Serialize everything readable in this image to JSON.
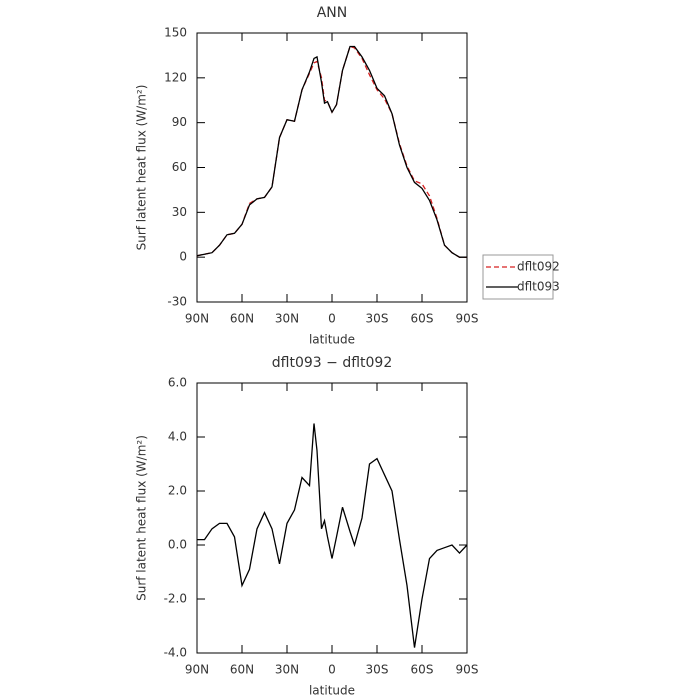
{
  "chart_data": [
    {
      "type": "line",
      "title": "ANN",
      "xlabel": "latitude",
      "ylabel": "Surf latent heat flux (W/m²)",
      "x": [
        90,
        85,
        80,
        75,
        70,
        65,
        60,
        55,
        50,
        45,
        40,
        35,
        30,
        25,
        20,
        15,
        12,
        10,
        7,
        5,
        3,
        0,
        -3,
        -7,
        -12,
        -15,
        -20,
        -25,
        -30,
        -35,
        -40,
        -45,
        -50,
        -55,
        -60,
        -65,
        -70,
        -75,
        -80,
        -85,
        -90
      ],
      "series": [
        {
          "name": "dflt092",
          "color": "#d62020",
          "line_style": "dashed",
          "values": [
            1,
            2,
            3,
            8,
            15,
            16,
            22,
            36,
            39,
            40,
            47,
            80,
            92,
            91,
            112,
            123,
            130,
            131,
            120,
            105,
            104,
            97,
            102,
            125,
            141,
            140,
            133,
            122,
            112,
            106,
            96,
            76,
            61,
            51,
            49,
            41,
            26,
            8,
            3,
            0,
            0
          ]
        },
        {
          "name": "dflt093",
          "color": "#000000",
          "line_style": "solid",
          "values": [
            1,
            2,
            3,
            8,
            15,
            16,
            22,
            35,
            39,
            40,
            47,
            80,
            92,
            91,
            112,
            124,
            133,
            134,
            117,
            103,
            104,
            97,
            102,
            125,
            141,
            141,
            134,
            125,
            113,
            108,
            96,
            75,
            60,
            50,
            46,
            38,
            25,
            8,
            3,
            0,
            0
          ]
        }
      ],
      "xlim": [
        90,
        -90
      ],
      "xticks": [
        {
          "value": 90,
          "label": "90N"
        },
        {
          "value": 60,
          "label": "60N"
        },
        {
          "value": 30,
          "label": "30N"
        },
        0,
        {
          "value": -30,
          "label": "30S"
        },
        {
          "value": -60,
          "label": "60S"
        },
        {
          "value": -90,
          "label": "90S"
        }
      ],
      "ylim": [
        -30,
        150
      ],
      "yticks": [
        -30,
        0,
        30,
        60,
        90,
        120,
        150
      ],
      "legend": "right"
    },
    {
      "type": "line",
      "title": "dflt093 − dflt092",
      "xlabel": "latitude",
      "ylabel": "Surf latent heat flux (W/m²)",
      "x": [
        90,
        85,
        80,
        75,
        70,
        65,
        60,
        55,
        50,
        45,
        40,
        35,
        30,
        25,
        20,
        15,
        12,
        10,
        7,
        5,
        3,
        0,
        -3,
        -7,
        -12,
        -15,
        -20,
        -25,
        -30,
        -35,
        -40,
        -45,
        -50,
        -55,
        -60,
        -65,
        -70,
        -75,
        -80,
        -85,
        -90
      ],
      "series": [
        {
          "color": "#000000",
          "line_style": "solid",
          "values": [
            0.2,
            0.2,
            0.6,
            0.8,
            0.8,
            0.3,
            -1.5,
            -0.9,
            0.6,
            1.2,
            0.6,
            -0.7,
            0.8,
            1.3,
            2.5,
            2.2,
            4.5,
            3.5,
            0.6,
            0.9,
            0.3,
            -0.5,
            0.3,
            1.4,
            0.5,
            0.0,
            1.0,
            3.0,
            3.2,
            2.6,
            2.0,
            0.2,
            -1.5,
            -3.8,
            -2.0,
            -0.5,
            -0.2,
            -0.1,
            0.0,
            -0.3,
            0.0
          ]
        }
      ],
      "xlim": [
        90,
        -90
      ],
      "xticks": [
        {
          "value": 90,
          "label": "90N"
        },
        {
          "value": 60,
          "label": "60N"
        },
        {
          "value": 30,
          "label": "30N"
        },
        0,
        {
          "value": -30,
          "label": "30S"
        },
        {
          "value": -60,
          "label": "60S"
        },
        {
          "value": -90,
          "label": "90S"
        }
      ],
      "ylim": [
        -4,
        6
      ],
      "yticks": [
        {
          "value": -4,
          "label": "-4.0"
        },
        {
          "value": -2,
          "label": "-2.0"
        },
        {
          "value": 0,
          "label": "0.0"
        },
        {
          "value": 2,
          "label": "2.0"
        },
        {
          "value": 4,
          "label": "4.0"
        },
        {
          "value": 6,
          "label": "6.0"
        }
      ]
    }
  ]
}
